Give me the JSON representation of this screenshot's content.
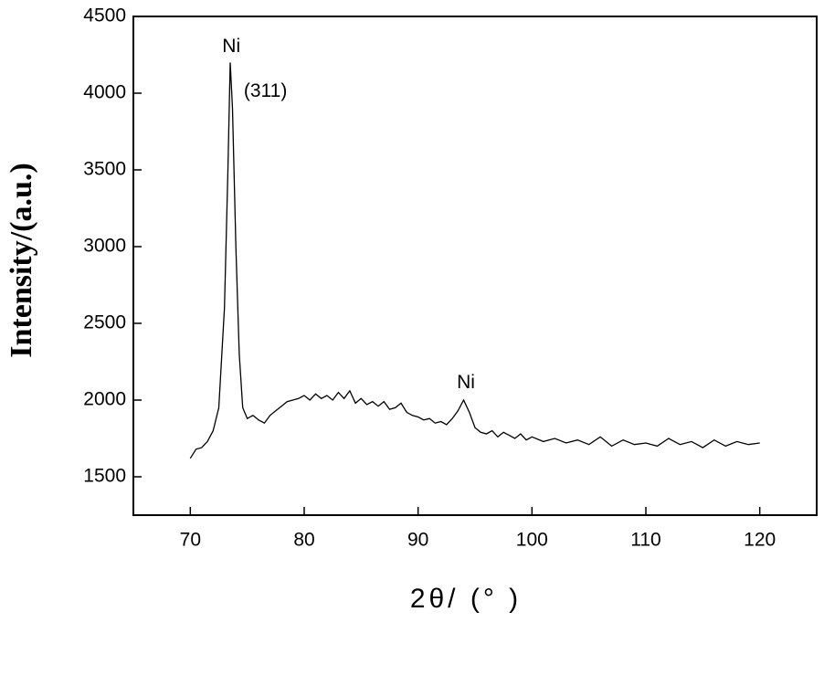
{
  "chart_data": {
    "type": "line",
    "xlabel": "2θ/ (° )",
    "ylabel": "Intensity/(a.u.)",
    "annotations": [
      {
        "text": "Ni",
        "x": 73.6,
        "y": 4300
      },
      {
        "text": "(311)",
        "x": 76.6,
        "y": 4010
      },
      {
        "text": "Ni",
        "x": 94.2,
        "y": 2110
      }
    ],
    "xlim": [
      65,
      125
    ],
    "xticks": [
      70,
      80,
      90,
      100,
      110,
      120
    ],
    "ylim": [
      1250,
      4500
    ],
    "yticks": [
      1500,
      2000,
      2500,
      3000,
      3500,
      4000,
      4500
    ],
    "series": [
      {
        "color": "#000000",
        "x": [
          70,
          70.5,
          71,
          71.5,
          72,
          72.5,
          73,
          73.3,
          73.5,
          73.7,
          74,
          74.3,
          74.6,
          75,
          75.5,
          76,
          76.5,
          77,
          77.5,
          78,
          78.5,
          79,
          79.5,
          80,
          80.5,
          81,
          81.5,
          82,
          82.5,
          83,
          83.5,
          84,
          84.5,
          85,
          85.5,
          86,
          86.5,
          87,
          87.5,
          88,
          88.5,
          89,
          89.5,
          90,
          90.5,
          91,
          91.5,
          92,
          92.5,
          93,
          93.5,
          94,
          94.5,
          95,
          95.5,
          96,
          96.5,
          97,
          97.5,
          98,
          98.5,
          99,
          99.5,
          100,
          101,
          102,
          103,
          104,
          105,
          106,
          107,
          108,
          109,
          110,
          111,
          112,
          113,
          114,
          115,
          116,
          117,
          118,
          119,
          120
        ],
        "values": [
          1620,
          1680,
          1690,
          1730,
          1800,
          1950,
          2600,
          3500,
          4200,
          3900,
          3000,
          2300,
          1950,
          1880,
          1900,
          1870,
          1850,
          1900,
          1930,
          1960,
          1990,
          2000,
          2010,
          2030,
          2000,
          2040,
          2010,
          2030,
          2000,
          2050,
          2010,
          2060,
          1980,
          2010,
          1970,
          1990,
          1960,
          1990,
          1940,
          1950,
          1980,
          1920,
          1900,
          1890,
          1870,
          1880,
          1850,
          1860,
          1840,
          1880,
          1930,
          2000,
          1920,
          1820,
          1790,
          1780,
          1800,
          1760,
          1790,
          1770,
          1750,
          1780,
          1740,
          1760,
          1730,
          1750,
          1720,
          1740,
          1710,
          1760,
          1700,
          1740,
          1710,
          1720,
          1700,
          1750,
          1710,
          1730,
          1690,
          1740,
          1700,
          1730,
          1710,
          1720
        ]
      }
    ]
  }
}
